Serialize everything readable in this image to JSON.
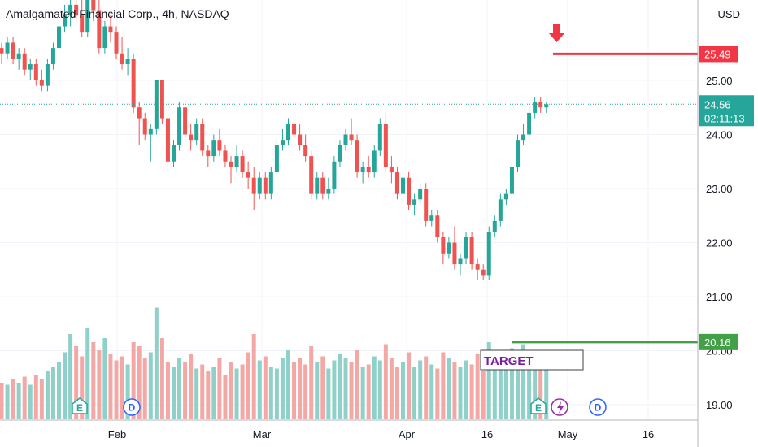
{
  "header": {
    "symbol_title": "Amalgamated Financial Corp., 4h, NASDAQ",
    "currency": "USD"
  },
  "colors": {
    "up": "#26a69a",
    "down": "#ef5350",
    "up_volume": "#8fd0c8",
    "down_volume": "#f4a8a6",
    "resistance_line": "#f23645",
    "support_line": "#43a047",
    "last_price": "#26a69a",
    "target_text": "#7b1fa2"
  },
  "chart_data": {
    "type": "candlestick",
    "interval": "4h",
    "y_axis": {
      "side": "right",
      "ylim": [
        18.8,
        26.6
      ],
      "ticks": [
        "19.00",
        "20.00",
        "21.00",
        "22.00",
        "23.00",
        "24.00",
        "25.00"
      ]
    },
    "x_axis": {
      "ticks": [
        "Feb",
        "Mar",
        "Apr",
        "16",
        "May",
        "16"
      ]
    },
    "grid": true,
    "ohlc": [
      [
        25.6,
        25.7,
        25.3,
        25.5
      ],
      [
        25.5,
        25.8,
        25.4,
        25.7
      ],
      [
        25.7,
        25.8,
        25.3,
        25.4
      ],
      [
        25.4,
        25.6,
        25.2,
        25.5
      ],
      [
        25.5,
        25.6,
        25.1,
        25.2
      ],
      [
        25.2,
        25.4,
        25.0,
        25.3
      ],
      [
        25.3,
        25.4,
        24.9,
        25.0
      ],
      [
        25.0,
        25.2,
        24.8,
        24.9
      ],
      [
        24.9,
        25.4,
        24.8,
        25.3
      ],
      [
        25.3,
        25.7,
        25.2,
        25.6
      ],
      [
        25.6,
        26.1,
        25.5,
        26.0
      ],
      [
        26.0,
        26.4,
        25.9,
        26.2
      ],
      [
        26.2,
        26.6,
        26.0,
        26.4
      ],
      [
        26.4,
        26.6,
        26.1,
        26.2
      ],
      [
        26.2,
        26.5,
        25.8,
        25.9
      ],
      [
        25.9,
        26.6,
        25.8,
        26.5
      ],
      [
        26.5,
        26.6,
        26.1,
        26.3
      ],
      [
        26.3,
        26.5,
        25.5,
        25.6
      ],
      [
        25.6,
        26.1,
        25.5,
        26.0
      ],
      [
        26.0,
        26.2,
        25.7,
        25.9
      ],
      [
        25.9,
        26.0,
        25.4,
        25.5
      ],
      [
        25.5,
        25.8,
        25.2,
        25.3
      ],
      [
        25.3,
        25.6,
        25.1,
        25.4
      ],
      [
        25.4,
        25.5,
        24.4,
        24.5
      ],
      [
        24.5,
        24.6,
        23.8,
        24.3
      ],
      [
        24.3,
        24.4,
        23.9,
        24.0
      ],
      [
        24.0,
        24.2,
        23.5,
        24.1
      ],
      [
        24.1,
        25.0,
        24.0,
        25.0
      ],
      [
        25.0,
        25.0,
        24.2,
        24.3
      ],
      [
        24.3,
        24.4,
        23.3,
        23.5
      ],
      [
        23.5,
        23.9,
        23.4,
        23.8
      ],
      [
        23.8,
        24.6,
        23.7,
        24.5
      ],
      [
        24.5,
        24.6,
        23.9,
        24.0
      ],
      [
        24.0,
        24.2,
        23.7,
        23.9
      ],
      [
        23.9,
        24.3,
        23.8,
        24.2
      ],
      [
        24.2,
        24.3,
        23.6,
        23.7
      ],
      [
        23.7,
        23.8,
        23.4,
        23.6
      ],
      [
        23.6,
        24.0,
        23.5,
        23.9
      ],
      [
        23.9,
        24.1,
        23.6,
        23.7
      ],
      [
        23.7,
        23.8,
        23.4,
        23.5
      ],
      [
        23.5,
        23.6,
        23.1,
        23.4
      ],
      [
        23.4,
        23.8,
        23.3,
        23.6
      ],
      [
        23.6,
        23.7,
        23.2,
        23.3
      ],
      [
        23.3,
        23.5,
        23.0,
        23.2
      ],
      [
        23.2,
        23.4,
        22.6,
        22.9
      ],
      [
        22.9,
        23.3,
        22.8,
        23.2
      ],
      [
        23.2,
        23.3,
        22.8,
        22.9
      ],
      [
        22.9,
        23.4,
        22.8,
        23.3
      ],
      [
        23.3,
        23.9,
        23.2,
        23.8
      ],
      [
        23.8,
        24.1,
        23.7,
        23.9
      ],
      [
        23.9,
        24.3,
        23.8,
        24.2
      ],
      [
        24.2,
        24.3,
        23.9,
        24.0
      ],
      [
        24.0,
        24.2,
        23.7,
        23.8
      ],
      [
        23.8,
        24.0,
        23.5,
        23.6
      ],
      [
        23.6,
        23.7,
        22.8,
        22.9
      ],
      [
        22.9,
        23.3,
        22.8,
        23.2
      ],
      [
        23.2,
        23.3,
        22.8,
        22.9
      ],
      [
        22.9,
        23.2,
        22.8,
        23.0
      ],
      [
        23.0,
        23.6,
        22.9,
        23.5
      ],
      [
        23.5,
        23.9,
        23.4,
        23.8
      ],
      [
        23.8,
        24.1,
        23.7,
        24.0
      ],
      [
        24.0,
        24.3,
        23.8,
        23.9
      ],
      [
        23.9,
        24.0,
        23.2,
        23.3
      ],
      [
        23.3,
        23.5,
        23.1,
        23.4
      ],
      [
        23.4,
        23.6,
        23.2,
        23.3
      ],
      [
        23.3,
        23.8,
        23.2,
        23.7
      ],
      [
        23.7,
        24.3,
        23.6,
        24.2
      ],
      [
        24.2,
        24.4,
        23.3,
        23.4
      ],
      [
        23.4,
        23.6,
        23.1,
        23.3
      ],
      [
        23.3,
        23.4,
        22.8,
        22.9
      ],
      [
        22.9,
        23.3,
        22.8,
        23.2
      ],
      [
        23.2,
        23.3,
        22.6,
        22.7
      ],
      [
        22.7,
        22.9,
        22.5,
        22.8
      ],
      [
        22.8,
        23.1,
        22.7,
        23.0
      ],
      [
        23.0,
        23.1,
        22.3,
        22.4
      ],
      [
        22.4,
        22.6,
        22.3,
        22.5
      ],
      [
        22.5,
        22.6,
        22.0,
        22.1
      ],
      [
        22.1,
        22.2,
        21.6,
        21.8
      ],
      [
        21.8,
        22.1,
        21.7,
        22.0
      ],
      [
        22.0,
        22.3,
        21.5,
        21.6
      ],
      [
        21.6,
        21.8,
        21.4,
        21.7
      ],
      [
        21.7,
        22.2,
        21.6,
        22.1
      ],
      [
        22.1,
        22.2,
        21.5,
        21.6
      ],
      [
        21.6,
        21.7,
        21.3,
        21.5
      ],
      [
        21.5,
        21.6,
        21.3,
        21.4
      ],
      [
        21.4,
        22.3,
        21.3,
        22.2
      ],
      [
        22.2,
        22.5,
        22.1,
        22.4
      ],
      [
        22.4,
        22.9,
        22.3,
        22.8
      ],
      [
        22.8,
        23.0,
        22.7,
        22.9
      ],
      [
        22.9,
        23.5,
        22.8,
        23.4
      ],
      [
        23.4,
        24.0,
        23.3,
        23.9
      ],
      [
        23.9,
        24.2,
        23.8,
        24.0
      ],
      [
        24.0,
        24.5,
        23.9,
        24.4
      ],
      [
        24.4,
        24.7,
        24.3,
        24.6
      ],
      [
        24.6,
        24.7,
        24.4,
        24.5
      ],
      [
        24.5,
        24.6,
        24.4,
        24.56
      ]
    ],
    "volume": [
      0.18,
      0.17,
      0.2,
      0.18,
      0.21,
      0.17,
      0.22,
      0.2,
      0.24,
      0.26,
      0.28,
      0.33,
      0.42,
      0.36,
      0.31,
      0.45,
      0.38,
      0.34,
      0.4,
      0.32,
      0.29,
      0.31,
      0.27,
      0.38,
      0.36,
      0.3,
      0.33,
      0.55,
      0.4,
      0.28,
      0.26,
      0.3,
      0.28,
      0.32,
      0.25,
      0.27,
      0.24,
      0.26,
      0.3,
      0.22,
      0.28,
      0.25,
      0.27,
      0.33,
      0.42,
      0.29,
      0.31,
      0.26,
      0.25,
      0.3,
      0.34,
      0.28,
      0.3,
      0.27,
      0.36,
      0.28,
      0.31,
      0.25,
      0.29,
      0.32,
      0.3,
      0.28,
      0.34,
      0.26,
      0.27,
      0.31,
      0.29,
      0.37,
      0.3,
      0.26,
      0.28,
      0.33,
      0.26,
      0.29,
      0.31,
      0.27,
      0.25,
      0.33,
      0.3,
      0.28,
      0.26,
      0.29,
      0.27,
      0.32,
      0.24,
      0.38,
      0.3,
      0.28,
      0.33,
      0.35,
      0.31,
      0.37,
      0.29,
      0.32,
      0.28,
      0.27
    ],
    "last_price": "24.56",
    "countdown": "02:11:13",
    "levels": [
      {
        "name": "resistance",
        "value": 25.49,
        "label": "25.49"
      },
      {
        "name": "support",
        "value": 20.16,
        "label": "20.16"
      }
    ],
    "annotations": {
      "target_label": "TARGET",
      "event_earnings": "E",
      "event_dividend": "D"
    }
  }
}
